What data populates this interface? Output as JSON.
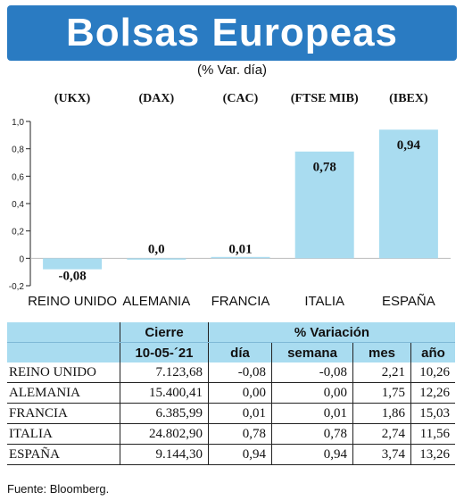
{
  "header": {
    "title": "Bolsas Europeas",
    "subtitle": "(% Var. día)"
  },
  "colors": {
    "banner": "#2a7bc2",
    "bar": "#a9dcf0",
    "table_header": "#a9dcf0"
  },
  "chart_data": {
    "type": "bar",
    "title": "Bolsas Europeas",
    "subtitle": "(% Var. día)",
    "index_codes": [
      "(UKX)",
      "(DAX)",
      "(CAC)",
      "(FTSE MIB)",
      "(IBEX)"
    ],
    "categories": [
      "REINO UNIDO",
      "ALEMANIA",
      "FRANCIA",
      "ITALIA",
      "ESPAÑA"
    ],
    "values": [
      -0.08,
      0.0,
      0.01,
      0.78,
      0.94
    ],
    "value_labels": [
      "-0,08",
      "0,0",
      "0,01",
      "0,78",
      "0,94"
    ],
    "ylim": [
      -0.2,
      1.0
    ],
    "yticks": [
      "-0,2",
      "0",
      "0,2",
      "0,4",
      "0,6",
      "0,8",
      "1,0"
    ],
    "ytick_values": [
      -0.2,
      0,
      0.2,
      0.4,
      0.6,
      0.8,
      1.0
    ],
    "grid": false,
    "legend": "none"
  },
  "table": {
    "group_headers": [
      "Cierre",
      "% Variación"
    ],
    "sub_headers": [
      "10-05-´21",
      "día",
      "semana",
      "mes",
      "año"
    ],
    "rows": [
      {
        "name": "REINO UNIDO",
        "cierre": "7.123,68",
        "dia": "-0,08",
        "semana": "-0,08",
        "mes": "2,21",
        "ano": "10,26"
      },
      {
        "name": "ALEMANIA",
        "cierre": "15.400,41",
        "dia": "0,00",
        "semana": "0,00",
        "mes": "1,75",
        "ano": "12,26"
      },
      {
        "name": "FRANCIA",
        "cierre": "6.385,99",
        "dia": "0,01",
        "semana": "0,01",
        "mes": "1,86",
        "ano": "15,03"
      },
      {
        "name": "ITALIA",
        "cierre": "24.802,90",
        "dia": "0,78",
        "semana": "0,78",
        "mes": "2,74",
        "ano": "11,56"
      },
      {
        "name": "ESPAÑA",
        "cierre": "9.144,30",
        "dia": "0,94",
        "semana": "0,94",
        "mes": "3,74",
        "ano": "13,26"
      }
    ]
  },
  "footer": {
    "source": "Fuente: Bloomberg."
  }
}
